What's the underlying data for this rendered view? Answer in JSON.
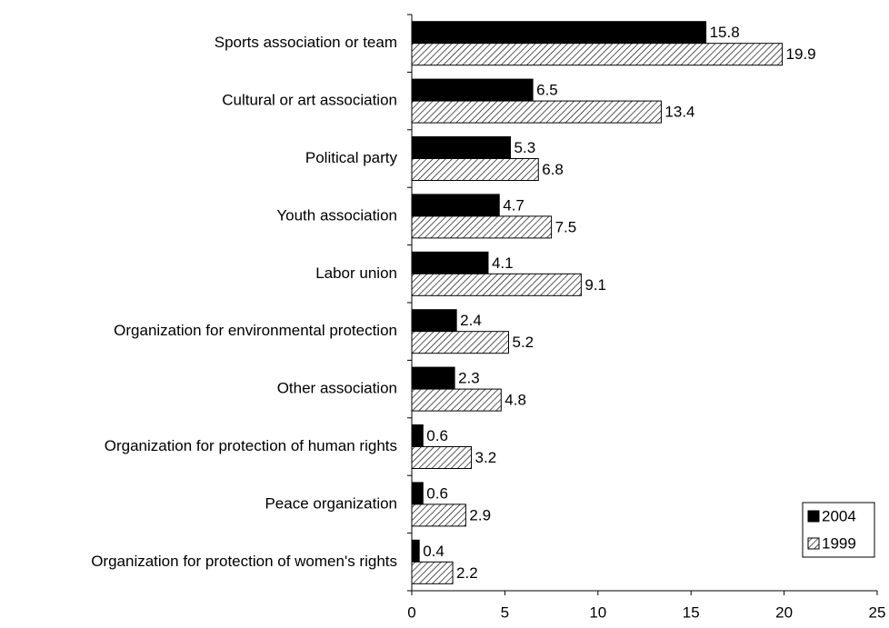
{
  "chart_data": {
    "type": "hbar",
    "categories": [
      "Sports association or team",
      "Cultural or art association",
      "Political party",
      "Youth association",
      "Labor union",
      "Organization for environmental protection",
      "Other association",
      "Organization for protection of human rights",
      "Peace organization",
      "Organization for protection of women's rights"
    ],
    "series": [
      {
        "name": "2004",
        "color": "#000000",
        "hatch": false,
        "values": [
          15.8,
          6.5,
          5.3,
          4.7,
          4.1,
          2.4,
          2.3,
          0.6,
          0.6,
          0.4
        ]
      },
      {
        "name": "1999",
        "color": "#000000",
        "hatch": true,
        "values": [
          19.9,
          13.4,
          6.8,
          7.5,
          9.1,
          5.2,
          4.8,
          3.2,
          2.9,
          2.2
        ]
      }
    ],
    "xlim": [
      0,
      25
    ],
    "xticks": [
      0,
      5,
      10,
      15,
      20,
      25
    ],
    "grid": false,
    "legend": "lower right"
  }
}
